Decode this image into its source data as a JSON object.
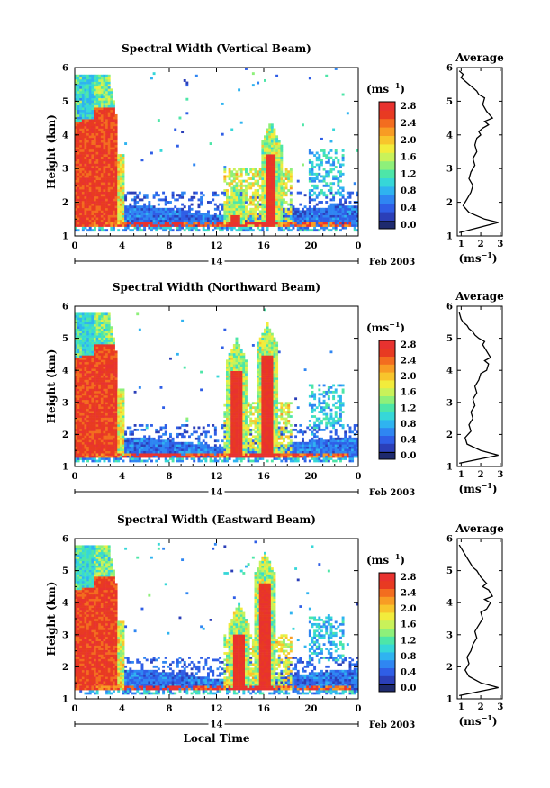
{
  "figure": {
    "date_label": "Feb 2003",
    "day_label": "14",
    "bottom_xlabel": "Local Time",
    "colorbar_unit": "(ms",
    "colorbar_unit_exp": "−1",
    "colorbar_unit_close": ")",
    "avg_xlabel": "(ms",
    "avg_title": "Average"
  },
  "chart_data": [
    {
      "type": "heatmap",
      "title": "Spectral Width (Vertical Beam)",
      "ylabel": "Height (km)",
      "xlabel": "",
      "x_ticks": [
        "0",
        "4",
        "8",
        "12",
        "16",
        "20",
        "0"
      ],
      "y_ticks": [
        "1",
        "2",
        "3",
        "4",
        "5",
        "6"
      ],
      "xlim": [
        0,
        24
      ],
      "ylim": [
        1,
        6
      ],
      "colorbar": {
        "ticks": [
          "0.0",
          "0.4",
          "0.8",
          "1.2",
          "1.6",
          "2.0",
          "2.4",
          "2.8"
        ],
        "range": [
          0,
          3.0
        ]
      },
      "profile": {
        "title": "Average",
        "xlim": [
          0.8,
          3.1
        ],
        "ylim": [
          1,
          6
        ],
        "x_ticks": [
          "1",
          "2",
          "3"
        ],
        "y_ticks": [
          "1",
          "2",
          "3",
          "4",
          "5",
          "6"
        ],
        "x": [
          0.9,
          2.9,
          2.2,
          1.4,
          1.1,
          1.3,
          1.5,
          1.6,
          1.4,
          1.5,
          1.7,
          1.6,
          1.8,
          1.7,
          1.8,
          2.0,
          1.9,
          2.1,
          2.4,
          2.2,
          2.6,
          2.3,
          2.1,
          2.2,
          1.9,
          1.8,
          1.6,
          1.4,
          1.2,
          1.0,
          1.1,
          0.9
        ],
        "y": [
          1.1,
          1.4,
          1.5,
          1.7,
          1.9,
          2.1,
          2.3,
          2.5,
          2.7,
          2.9,
          3.1,
          3.3,
          3.5,
          3.7,
          3.9,
          4.0,
          4.1,
          4.2,
          4.3,
          4.4,
          4.5,
          4.7,
          4.9,
          5.1,
          5.2,
          5.3,
          5.4,
          5.5,
          5.6,
          5.7,
          5.8,
          5.9
        ]
      }
    },
    {
      "type": "heatmap",
      "title": "Spectral Width (Northward Beam)",
      "ylabel": "Height (km)",
      "xlabel": "",
      "x_ticks": [
        "0",
        "4",
        "8",
        "12",
        "16",
        "20",
        "0"
      ],
      "y_ticks": [
        "1",
        "2",
        "3",
        "4",
        "5",
        "6"
      ],
      "xlim": [
        0,
        24
      ],
      "ylim": [
        1,
        6
      ],
      "colorbar": {
        "ticks": [
          "0.0",
          "0.4",
          "0.8",
          "1.2",
          "1.6",
          "2.0",
          "2.4",
          "2.8"
        ],
        "range": [
          0,
          3.0
        ]
      },
      "profile": {
        "title": "Average",
        "xlim": [
          0.8,
          3.1
        ],
        "ylim": [
          1,
          6
        ],
        "x_ticks": [
          "1",
          "2",
          "3"
        ],
        "y_ticks": [
          "1",
          "2",
          "3",
          "4",
          "5",
          "6"
        ],
        "x": [
          0.9,
          2.9,
          2.0,
          1.3,
          1.2,
          1.5,
          1.4,
          1.6,
          1.5,
          1.7,
          1.6,
          1.8,
          1.7,
          1.9,
          2.0,
          2.3,
          2.4,
          2.2,
          2.5,
          2.3,
          2.1,
          2.2,
          1.9,
          1.7,
          1.6,
          1.4,
          1.3,
          1.1,
          1.0,
          0.9
        ],
        "y": [
          1.1,
          1.35,
          1.5,
          1.7,
          1.9,
          2.1,
          2.3,
          2.5,
          2.7,
          2.9,
          3.1,
          3.3,
          3.5,
          3.7,
          3.9,
          4.0,
          4.2,
          4.3,
          4.4,
          4.6,
          4.8,
          4.9,
          5.0,
          5.1,
          5.2,
          5.3,
          5.4,
          5.5,
          5.6,
          5.8
        ]
      }
    },
    {
      "type": "heatmap",
      "title": "Spectral Width (Eastward Beam)",
      "ylabel": "Height (km)",
      "xlabel": "Local Time",
      "x_ticks": [
        "0",
        "4",
        "8",
        "12",
        "16",
        "20",
        "0"
      ],
      "y_ticks": [
        "1",
        "2",
        "3",
        "4",
        "5",
        "6"
      ],
      "xlim": [
        0,
        24
      ],
      "ylim": [
        1,
        6
      ],
      "colorbar": {
        "ticks": [
          "0.0",
          "0.4",
          "0.8",
          "1.2",
          "1.6",
          "2.0",
          "2.4",
          "2.8"
        ],
        "range": [
          0,
          3.0
        ]
      },
      "profile": {
        "title": "Average",
        "xlim": [
          0.8,
          3.1
        ],
        "ylim": [
          1,
          6
        ],
        "x_ticks": [
          "1",
          "2",
          "3"
        ],
        "y_ticks": [
          "1",
          "2",
          "3",
          "4",
          "5",
          "6"
        ],
        "x": [
          0.9,
          2.9,
          2.0,
          1.4,
          1.2,
          1.4,
          1.3,
          1.5,
          1.6,
          1.8,
          1.7,
          1.9,
          2.1,
          2.0,
          2.3,
          2.5,
          2.2,
          2.6,
          2.4,
          2.1,
          2.3,
          2.0,
          1.8,
          1.6,
          1.4,
          1.2,
          1.1,
          0.9
        ],
        "y": [
          1.1,
          1.35,
          1.5,
          1.7,
          1.9,
          2.1,
          2.3,
          2.5,
          2.7,
          2.9,
          3.1,
          3.3,
          3.5,
          3.7,
          3.8,
          4.0,
          4.1,
          4.2,
          4.4,
          4.5,
          4.6,
          4.8,
          5.0,
          5.1,
          5.3,
          5.5,
          5.6,
          5.8
        ]
      }
    }
  ]
}
